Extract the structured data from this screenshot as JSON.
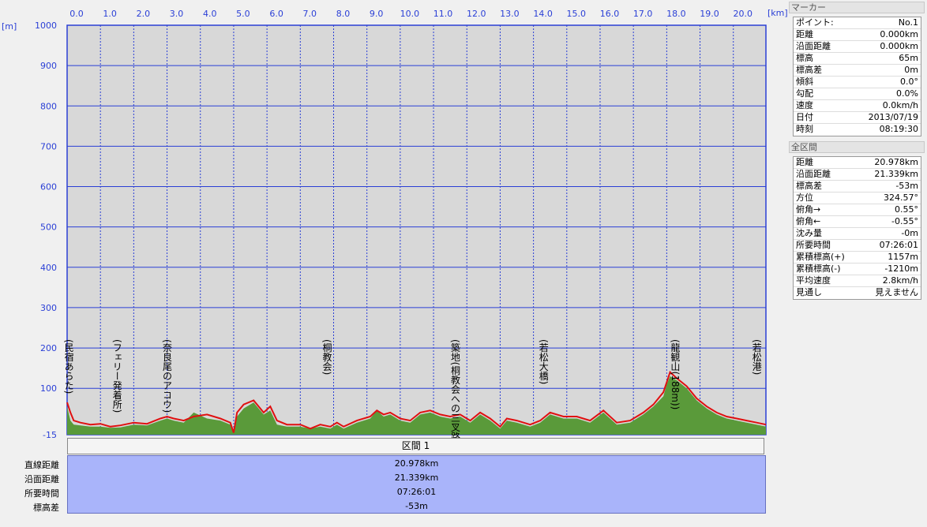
{
  "chart_data": {
    "type": "area",
    "x_unit": "[km]",
    "y_unit": "[m]",
    "x_ticks": [
      "0.0",
      "1.0",
      "2.0",
      "3.0",
      "4.0",
      "5.0",
      "6.0",
      "7.0",
      "8.0",
      "9.0",
      "10.0",
      "11.0",
      "12.0",
      "13.0",
      "14.0",
      "15.0",
      "16.0",
      "17.0",
      "18.0",
      "19.0",
      "20.0"
    ],
    "y_ticks": [
      "1000",
      "900",
      "800",
      "700",
      "600",
      "500",
      "400",
      "300",
      "200",
      "100",
      "-15"
    ],
    "xlim": [
      0,
      20.978
    ],
    "ylim": [
      -15,
      1000
    ],
    "grid": true,
    "series": [
      {
        "color": "#e01010",
        "x": [
          0,
          0.1,
          0.2,
          0.4,
          0.7,
          1.0,
          1.3,
          1.6,
          2.0,
          2.4,
          2.8,
          3.0,
          3.2,
          3.5,
          3.8,
          4.2,
          4.6,
          4.9,
          5.0,
          5.1,
          5.3,
          5.6,
          5.9,
          6.1,
          6.3,
          6.6,
          7.0,
          7.3,
          7.6,
          7.9,
          8.1,
          8.3,
          8.7,
          9.1,
          9.3,
          9.5,
          9.7,
          10.0,
          10.3,
          10.6,
          10.9,
          11.2,
          11.5,
          11.8,
          12.1,
          12.4,
          12.7,
          13.0,
          13.2,
          13.5,
          13.9,
          14.2,
          14.5,
          14.9,
          15.3,
          15.7,
          16.1,
          16.5,
          16.9,
          17.3,
          17.6,
          17.9,
          18.0,
          18.1,
          18.3,
          18.6,
          18.9,
          19.2,
          19.5,
          19.8,
          20.1,
          20.4,
          20.7,
          20.978
        ],
        "y": [
          65,
          40,
          20,
          15,
          10,
          12,
          5,
          8,
          15,
          12,
          25,
          30,
          25,
          20,
          30,
          35,
          25,
          15,
          -10,
          40,
          60,
          70,
          40,
          55,
          20,
          10,
          10,
          0,
          10,
          5,
          15,
          5,
          20,
          30,
          45,
          35,
          40,
          25,
          20,
          40,
          45,
          35,
          30,
          35,
          20,
          40,
          25,
          5,
          25,
          20,
          10,
          20,
          40,
          30,
          30,
          20,
          45,
          15,
          20,
          40,
          60,
          90,
          115,
          140,
          125,
          105,
          75,
          55,
          40,
          30,
          25,
          20,
          15,
          10
        ]
      },
      {
        "color": "#5a9a3a",
        "x": [
          0,
          0.1,
          0.2,
          0.4,
          0.7,
          1.0,
          1.3,
          1.6,
          2.0,
          2.4,
          2.8,
          3.0,
          3.2,
          3.5,
          3.8,
          4.2,
          4.6,
          4.9,
          5.0,
          5.1,
          5.3,
          5.6,
          5.9,
          6.1,
          6.3,
          6.6,
          7.0,
          7.3,
          7.6,
          7.9,
          8.1,
          8.3,
          8.7,
          9.1,
          9.3,
          9.5,
          9.7,
          10.0,
          10.3,
          10.6,
          10.9,
          11.2,
          11.5,
          11.8,
          12.1,
          12.4,
          12.7,
          13.0,
          13.2,
          13.5,
          13.9,
          14.2,
          14.5,
          14.9,
          15.3,
          15.7,
          16.1,
          16.5,
          16.9,
          17.3,
          17.6,
          17.9,
          18.0,
          18.1,
          18.3,
          18.6,
          18.9,
          19.2,
          19.5,
          19.8,
          20.1,
          20.4,
          20.7,
          20.978
        ],
        "y": [
          55,
          20,
          10,
          8,
          5,
          5,
          2,
          3,
          10,
          8,
          20,
          25,
          20,
          15,
          40,
          25,
          20,
          10,
          -5,
          30,
          50,
          65,
          35,
          45,
          10,
          5,
          5,
          0,
          5,
          0,
          10,
          0,
          15,
          25,
          45,
          30,
          35,
          20,
          15,
          35,
          40,
          30,
          25,
          30,
          15,
          35,
          20,
          0,
          20,
          15,
          5,
          15,
          35,
          25,
          25,
          15,
          40,
          10,
          15,
          35,
          55,
          80,
          110,
          130,
          120,
          100,
          70,
          50,
          35,
          25,
          20,
          15,
          10,
          5
        ]
      }
    ],
    "landmarks": [
      {
        "x": 0.05,
        "label": "(民宿あらた)"
      },
      {
        "x": 1.5,
        "label": "(フェリー発着所)"
      },
      {
        "x": 3.0,
        "label": "(奈良尾のアコウ)"
      },
      {
        "x": 7.8,
        "label": "(桐教会)"
      },
      {
        "x": 11.65,
        "label": "(築地(桐教会への三叉路)"
      },
      {
        "x": 14.3,
        "label": "(若松大橋)"
      },
      {
        "x": 18.25,
        "label": "(龍観山(188m))"
      },
      {
        "x": 20.7,
        "label": "(若松港)"
      }
    ]
  },
  "section": {
    "title": "区間 1",
    "rows": [
      {
        "label": "直線距離",
        "value": "20.978km"
      },
      {
        "label": "沿面距離",
        "value": "21.339km"
      },
      {
        "label": "所要時間",
        "value": "07:26:01"
      },
      {
        "label": "標高差",
        "value": "-53m"
      }
    ]
  },
  "marker_panel": {
    "title": "マーカー",
    "rows": [
      {
        "label": "ポイント:",
        "value": "No.1"
      },
      {
        "label": "距離",
        "value": "0.000km"
      },
      {
        "label": "沿面距離",
        "value": "0.000km"
      },
      {
        "label": "標高",
        "value": "65m"
      },
      {
        "label": "標高差",
        "value": "0m"
      },
      {
        "label": "傾斜",
        "value": "0.0°"
      },
      {
        "label": "勾配",
        "value": "0.0%"
      },
      {
        "label": "速度",
        "value": "0.0km/h"
      },
      {
        "label": "日付",
        "value": "2013/07/19"
      },
      {
        "label": "時刻",
        "value": "08:19:30"
      }
    ]
  },
  "total_panel": {
    "title": "全区間",
    "rows": [
      {
        "label": "距離",
        "value": "20.978km"
      },
      {
        "label": "沿面距離",
        "value": "21.339km"
      },
      {
        "label": "標高差",
        "value": "-53m"
      },
      {
        "label": "方位",
        "value": "324.57°"
      },
      {
        "label": "俯角→",
        "value": "0.55°"
      },
      {
        "label": "俯角←",
        "value": "-0.55°"
      },
      {
        "label": "沈み量",
        "value": "-0m"
      },
      {
        "label": "所要時間",
        "value": "07:26:01"
      },
      {
        "label": "累積標高(+)",
        "value": "1157m"
      },
      {
        "label": "累積標高(-)",
        "value": "-1210m"
      },
      {
        "label": "平均速度",
        "value": "2.8km/h"
      },
      {
        "label": "見通し",
        "value": "見えません"
      }
    ]
  }
}
